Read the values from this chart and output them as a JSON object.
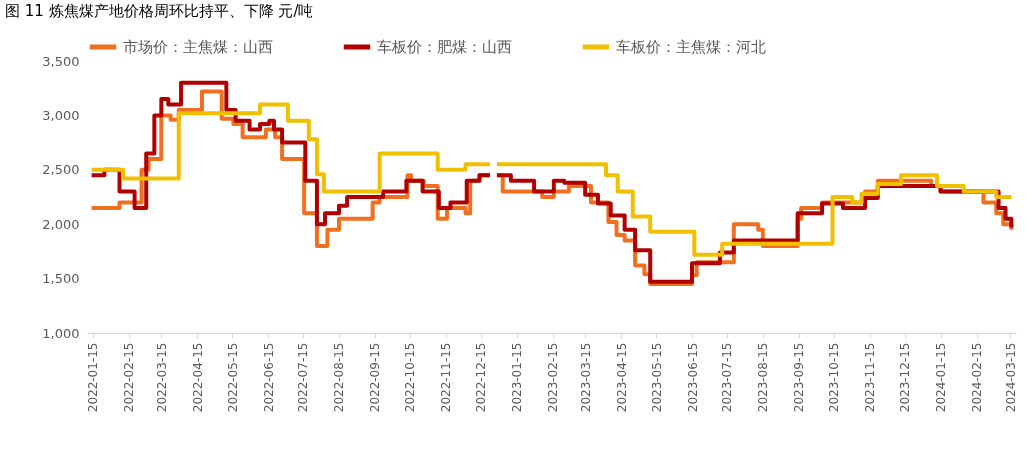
{
  "chart_data": {
    "type": "step",
    "title": "图 11 炼焦煤产地价格周环比持平、下降    元/吨",
    "ylim": [
      1000,
      3500
    ],
    "yticks": [
      {
        "value": 1000,
        "label": "1,000"
      },
      {
        "value": 1500,
        "label": "1,500"
      },
      {
        "value": 2000,
        "label": "2,000"
      },
      {
        "value": 2500,
        "label": "2,500"
      },
      {
        "value": 3000,
        "label": "3,000"
      },
      {
        "value": 3500,
        "label": "3,500"
      }
    ],
    "xlim": [
      "2022-01-10",
      "2024-03-20"
    ],
    "xticks": [
      "2022-01-15",
      "2022-02-15",
      "2022-03-15",
      "2022-04-15",
      "2022-05-15",
      "2022-06-15",
      "2022-07-15",
      "2022-08-15",
      "2022-09-15",
      "2022-10-15",
      "2022-11-15",
      "2022-12-15",
      "2023-01-15",
      "2023-02-15",
      "2023-03-15",
      "2023-04-15",
      "2023-05-15",
      "2023-06-15",
      "2023-07-15",
      "2023-08-15",
      "2023-09-15",
      "2023-10-15",
      "2023-11-15",
      "2023-12-15",
      "2024-01-15",
      "2024-02-15",
      "2024-03-15"
    ],
    "grid": false,
    "legend": "top",
    "series": [
      {
        "name": "市场价：主焦煤：山西",
        "color": "#f07020",
        "x": [
          "2022-01-14",
          "2022-02-07",
          "2022-02-26",
          "2022-03-04",
          "2022-03-15",
          "2022-03-23",
          "2022-03-30",
          "2022-04-19",
          "2022-05-06",
          "2022-05-16",
          "2022-05-24",
          "2022-06-13",
          "2022-06-21",
          "2022-06-27",
          "2022-07-16",
          "2022-07-27",
          "2022-08-05",
          "2022-08-15",
          "2022-09-13",
          "2022-09-19",
          "2022-10-13",
          "2022-10-16",
          "2022-10-27",
          "2022-11-08",
          "2022-11-16",
          "2022-12-02",
          "2022-12-06",
          "2022-12-14",
          "2022-12-23",
          "2022-12-24",
          "2022-12-29",
          "2023-01-03",
          "2023-02-06",
          "2023-02-16",
          "2023-03-01",
          "2023-03-20",
          "2023-04-04",
          "2023-04-11",
          "2023-04-18",
          "2023-04-27",
          "2023-05-05",
          "2023-05-10",
          "2023-06-15",
          "2023-06-19",
          "2023-07-21",
          "2023-08-11",
          "2023-08-15",
          "2023-09-14",
          "2023-09-17",
          "2023-10-05",
          "2023-11-11",
          "2023-11-22",
          "2024-01-07",
          "2024-01-15",
          "2024-02-21",
          "2024-03-03",
          "2024-03-09",
          "2024-03-16"
        ],
        "values": [
          2150,
          2200,
          2500,
          2600,
          3000,
          2960,
          3050,
          3220,
          2970,
          2920,
          2800,
          2870,
          2800,
          2600,
          2100,
          1800,
          1950,
          2050,
          2200,
          2250,
          2450,
          2400,
          2350,
          2050,
          2150,
          2100,
          2400,
          2450,
          2450,
          null,
          2450,
          2300,
          2250,
          2300,
          2350,
          2200,
          2020,
          1900,
          1850,
          1620,
          1540,
          1450,
          1530,
          1650,
          2000,
          1950,
          1800,
          2050,
          2150,
          2200,
          2300,
          2400,
          2350,
          2300,
          2200,
          2100,
          2000,
          1950
        ]
      },
      {
        "name": "车板价：肥煤：山西",
        "color": "#b00000",
        "x": [
          "2022-01-14",
          "2022-01-25",
          "2022-02-07",
          "2022-02-20",
          "2022-03-02",
          "2022-03-09",
          "2022-03-15",
          "2022-03-21",
          "2022-04-01",
          "2022-05-10",
          "2022-05-18",
          "2022-05-30",
          "2022-06-08",
          "2022-06-16",
          "2022-06-20",
          "2022-06-27",
          "2022-07-17",
          "2022-07-27",
          "2022-08-03",
          "2022-08-15",
          "2022-08-22",
          "2022-09-22",
          "2022-10-12",
          "2022-10-26",
          "2022-11-09",
          "2022-11-19",
          "2022-12-03",
          "2022-12-14",
          "2022-12-23",
          "2022-12-24",
          "2022-12-29",
          "2023-01-10",
          "2023-01-30",
          "2023-02-16",
          "2023-02-25",
          "2023-03-15",
          "2023-03-26",
          "2023-04-06",
          "2023-04-18",
          "2023-04-27",
          "2023-05-10",
          "2023-06-15",
          "2023-07-09",
          "2023-07-21",
          "2023-09-14",
          "2023-10-05",
          "2023-10-23",
          "2023-11-11",
          "2023-11-22",
          "2024-01-15",
          "2024-03-05",
          "2024-03-11",
          "2024-03-16"
        ],
        "values": [
          2450,
          2500,
          2300,
          2150,
          2650,
          3000,
          3150,
          3100,
          3300,
          3050,
          2950,
          2870,
          2920,
          2950,
          2870,
          2750,
          2400,
          2000,
          2100,
          2170,
          2250,
          2300,
          2400,
          2300,
          2150,
          2200,
          2400,
          2450,
          2450,
          null,
          2450,
          2400,
          2300,
          2400,
          2380,
          2270,
          2190,
          2080,
          1950,
          1760,
          1470,
          1640,
          1740,
          1850,
          2100,
          2190,
          2150,
          2240,
          2350,
          2300,
          2150,
          2050,
          1970
        ]
      },
      {
        "name": "车板价：主焦煤：河北",
        "color": "#f0c000",
        "x": [
          "2022-01-14",
          "2022-02-10",
          "2022-03-30",
          "2022-06-08",
          "2022-07-02",
          "2022-07-20",
          "2022-07-27",
          "2022-08-02",
          "2022-09-19",
          "2022-11-08",
          "2022-12-02",
          "2022-12-23",
          "2022-12-24",
          "2022-12-29",
          "2023-04-02",
          "2023-04-12",
          "2023-04-25",
          "2023-05-10",
          "2023-06-17",
          "2023-07-11",
          "2023-10-14",
          "2023-10-31",
          "2023-11-08",
          "2023-11-22",
          "2023-12-12",
          "2024-01-12",
          "2024-02-04",
          "2024-03-03",
          "2024-03-16"
        ],
        "values": [
          2500,
          2420,
          3020,
          3100,
          2950,
          2780,
          2460,
          2300,
          2650,
          2500,
          2550,
          2550,
          null,
          2550,
          2450,
          2300,
          2070,
          1930,
          1720,
          1820,
          2250,
          2200,
          2280,
          2370,
          2450,
          2350,
          2300,
          2250,
          2250
        ]
      }
    ]
  }
}
